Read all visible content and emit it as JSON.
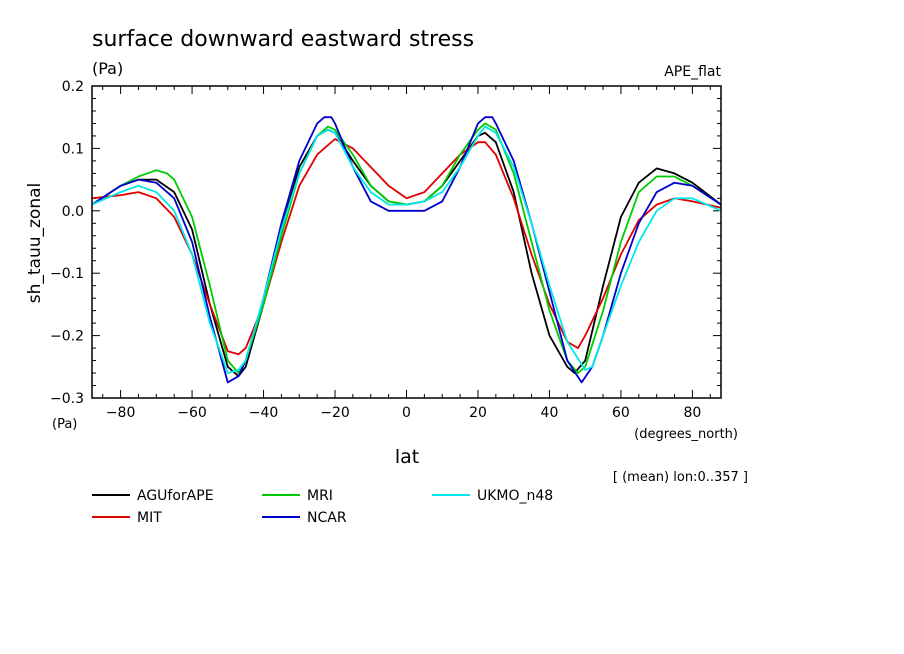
{
  "chart_data": {
    "type": "line",
    "title": "surface downward eastward stress",
    "unit_label": "(Pa)",
    "top_right_label": "APE_flat",
    "ylabel": "sh_tauu_zonal",
    "y_unit_label": "(Pa)",
    "xlabel": "lat",
    "x_unit_label": "(degrees_north)",
    "footnote": "[ (mean) lon:0..357 ]",
    "xlim": [
      -88,
      88
    ],
    "ylim": [
      -0.3,
      0.2
    ],
    "x_ticks": [
      -80,
      -60,
      -40,
      -20,
      0,
      20,
      40,
      60,
      80
    ],
    "x_tick_labels": [
      "−80",
      "−60",
      "−40",
      "−20",
      "0",
      "20",
      "40",
      "60",
      "80"
    ],
    "y_ticks": [
      -0.3,
      -0.2,
      -0.1,
      0.0,
      0.1,
      0.2
    ],
    "y_tick_labels": [
      "−0.3",
      "−0.2",
      "−0.1",
      "0.0",
      "0.1",
      "0.2"
    ],
    "grid": false,
    "legend_position": "bottom",
    "series": [
      {
        "name": "AGUforAPE",
        "color": "#000000",
        "x": [
          -88,
          -80,
          -75,
          -70,
          -65,
          -60,
          -55,
          -50,
          -47,
          -45,
          -40,
          -35,
          -30,
          -25,
          -22,
          -20,
          -15,
          -10,
          -5,
          0,
          5,
          10,
          15,
          20,
          22,
          25,
          30,
          35,
          40,
          45,
          47,
          50,
          55,
          60,
          65,
          70,
          75,
          80,
          88
        ],
        "y": [
          0.01,
          0.04,
          0.05,
          0.05,
          0.03,
          -0.03,
          -0.15,
          -0.25,
          -0.265,
          -0.25,
          -0.15,
          -0.03,
          0.07,
          0.12,
          0.13,
          0.125,
          0.08,
          0.04,
          0.015,
          0.01,
          0.015,
          0.04,
          0.08,
          0.12,
          0.125,
          0.11,
          0.03,
          -0.1,
          -0.2,
          -0.25,
          -0.26,
          -0.24,
          -0.12,
          -0.01,
          0.045,
          0.068,
          0.06,
          0.045,
          0.01
        ]
      },
      {
        "name": "MIT",
        "color": "#e00000",
        "x": [
          -88,
          -80,
          -75,
          -70,
          -65,
          -60,
          -55,
          -50,
          -47,
          -45,
          -40,
          -35,
          -30,
          -25,
          -20,
          -15,
          -10,
          -5,
          0,
          5,
          10,
          15,
          20,
          22,
          25,
          30,
          35,
          40,
          45,
          48,
          50,
          55,
          60,
          65,
          70,
          75,
          80,
          88
        ],
        "y": [
          0.02,
          0.025,
          0.03,
          0.02,
          -0.01,
          -0.07,
          -0.15,
          -0.225,
          -0.23,
          -0.22,
          -0.15,
          -0.05,
          0.04,
          0.09,
          0.115,
          0.1,
          0.07,
          0.04,
          0.02,
          0.03,
          0.06,
          0.09,
          0.11,
          0.11,
          0.09,
          0.02,
          -0.07,
          -0.15,
          -0.21,
          -0.22,
          -0.2,
          -0.14,
          -0.07,
          -0.015,
          0.01,
          0.02,
          0.015,
          0.005
        ]
      },
      {
        "name": "MRI",
        "color": "#00cc00",
        "x": [
          -88,
          -80,
          -75,
          -70,
          -67,
          -65,
          -60,
          -55,
          -50,
          -47,
          -45,
          -40,
          -35,
          -30,
          -25,
          -22,
          -20,
          -15,
          -10,
          -5,
          0,
          5,
          10,
          15,
          20,
          22,
          25,
          30,
          35,
          40,
          45,
          48,
          50,
          55,
          60,
          65,
          70,
          75,
          80,
          88
        ],
        "y": [
          0.01,
          0.04,
          0.055,
          0.065,
          0.06,
          0.05,
          -0.01,
          -0.12,
          -0.24,
          -0.26,
          -0.24,
          -0.15,
          -0.04,
          0.06,
          0.12,
          0.135,
          0.13,
          0.09,
          0.04,
          0.015,
          0.01,
          0.015,
          0.04,
          0.09,
          0.13,
          0.14,
          0.13,
          0.06,
          -0.05,
          -0.16,
          -0.24,
          -0.26,
          -0.25,
          -0.16,
          -0.05,
          0.03,
          0.055,
          0.055,
          0.04,
          0.01
        ]
      },
      {
        "name": "NCAR",
        "color": "#0000cc",
        "x": [
          -88,
          -80,
          -75,
          -70,
          -65,
          -60,
          -55,
          -50,
          -47,
          -45,
          -40,
          -35,
          -30,
          -25,
          -23,
          -21,
          -20,
          -15,
          -10,
          -5,
          0,
          5,
          10,
          15,
          20,
          22,
          24,
          25,
          30,
          35,
          40,
          45,
          49,
          52,
          55,
          60,
          65,
          70,
          75,
          80,
          88
        ],
        "y": [
          0.01,
          0.04,
          0.05,
          0.045,
          0.02,
          -0.05,
          -0.17,
          -0.275,
          -0.265,
          -0.24,
          -0.14,
          -0.02,
          0.08,
          0.14,
          0.15,
          0.15,
          0.14,
          0.07,
          0.015,
          0.0,
          0.0,
          0.0,
          0.015,
          0.07,
          0.14,
          0.15,
          0.15,
          0.14,
          0.08,
          -0.02,
          -0.13,
          -0.24,
          -0.275,
          -0.25,
          -0.2,
          -0.1,
          -0.02,
          0.03,
          0.045,
          0.04,
          0.01
        ]
      },
      {
        "name": "UKMO_n48",
        "color": "#00e8e8",
        "x": [
          -88,
          -80,
          -75,
          -70,
          -65,
          -60,
          -55,
          -50,
          -47,
          -45,
          -40,
          -35,
          -30,
          -25,
          -22,
          -20,
          -15,
          -10,
          -5,
          0,
          5,
          10,
          15,
          20,
          22,
          25,
          30,
          35,
          40,
          45,
          50,
          52,
          55,
          60,
          65,
          70,
          75,
          80,
          88
        ],
        "y": [
          0.01,
          0.03,
          0.04,
          0.03,
          0.0,
          -0.07,
          -0.18,
          -0.26,
          -0.255,
          -0.24,
          -0.14,
          -0.03,
          0.06,
          0.12,
          0.13,
          0.125,
          0.07,
          0.03,
          0.01,
          0.01,
          0.015,
          0.03,
          0.07,
          0.12,
          0.135,
          0.125,
          0.07,
          -0.02,
          -0.12,
          -0.21,
          -0.255,
          -0.25,
          -0.2,
          -0.12,
          -0.05,
          0.0,
          0.02,
          0.02,
          0.0
        ]
      }
    ]
  }
}
